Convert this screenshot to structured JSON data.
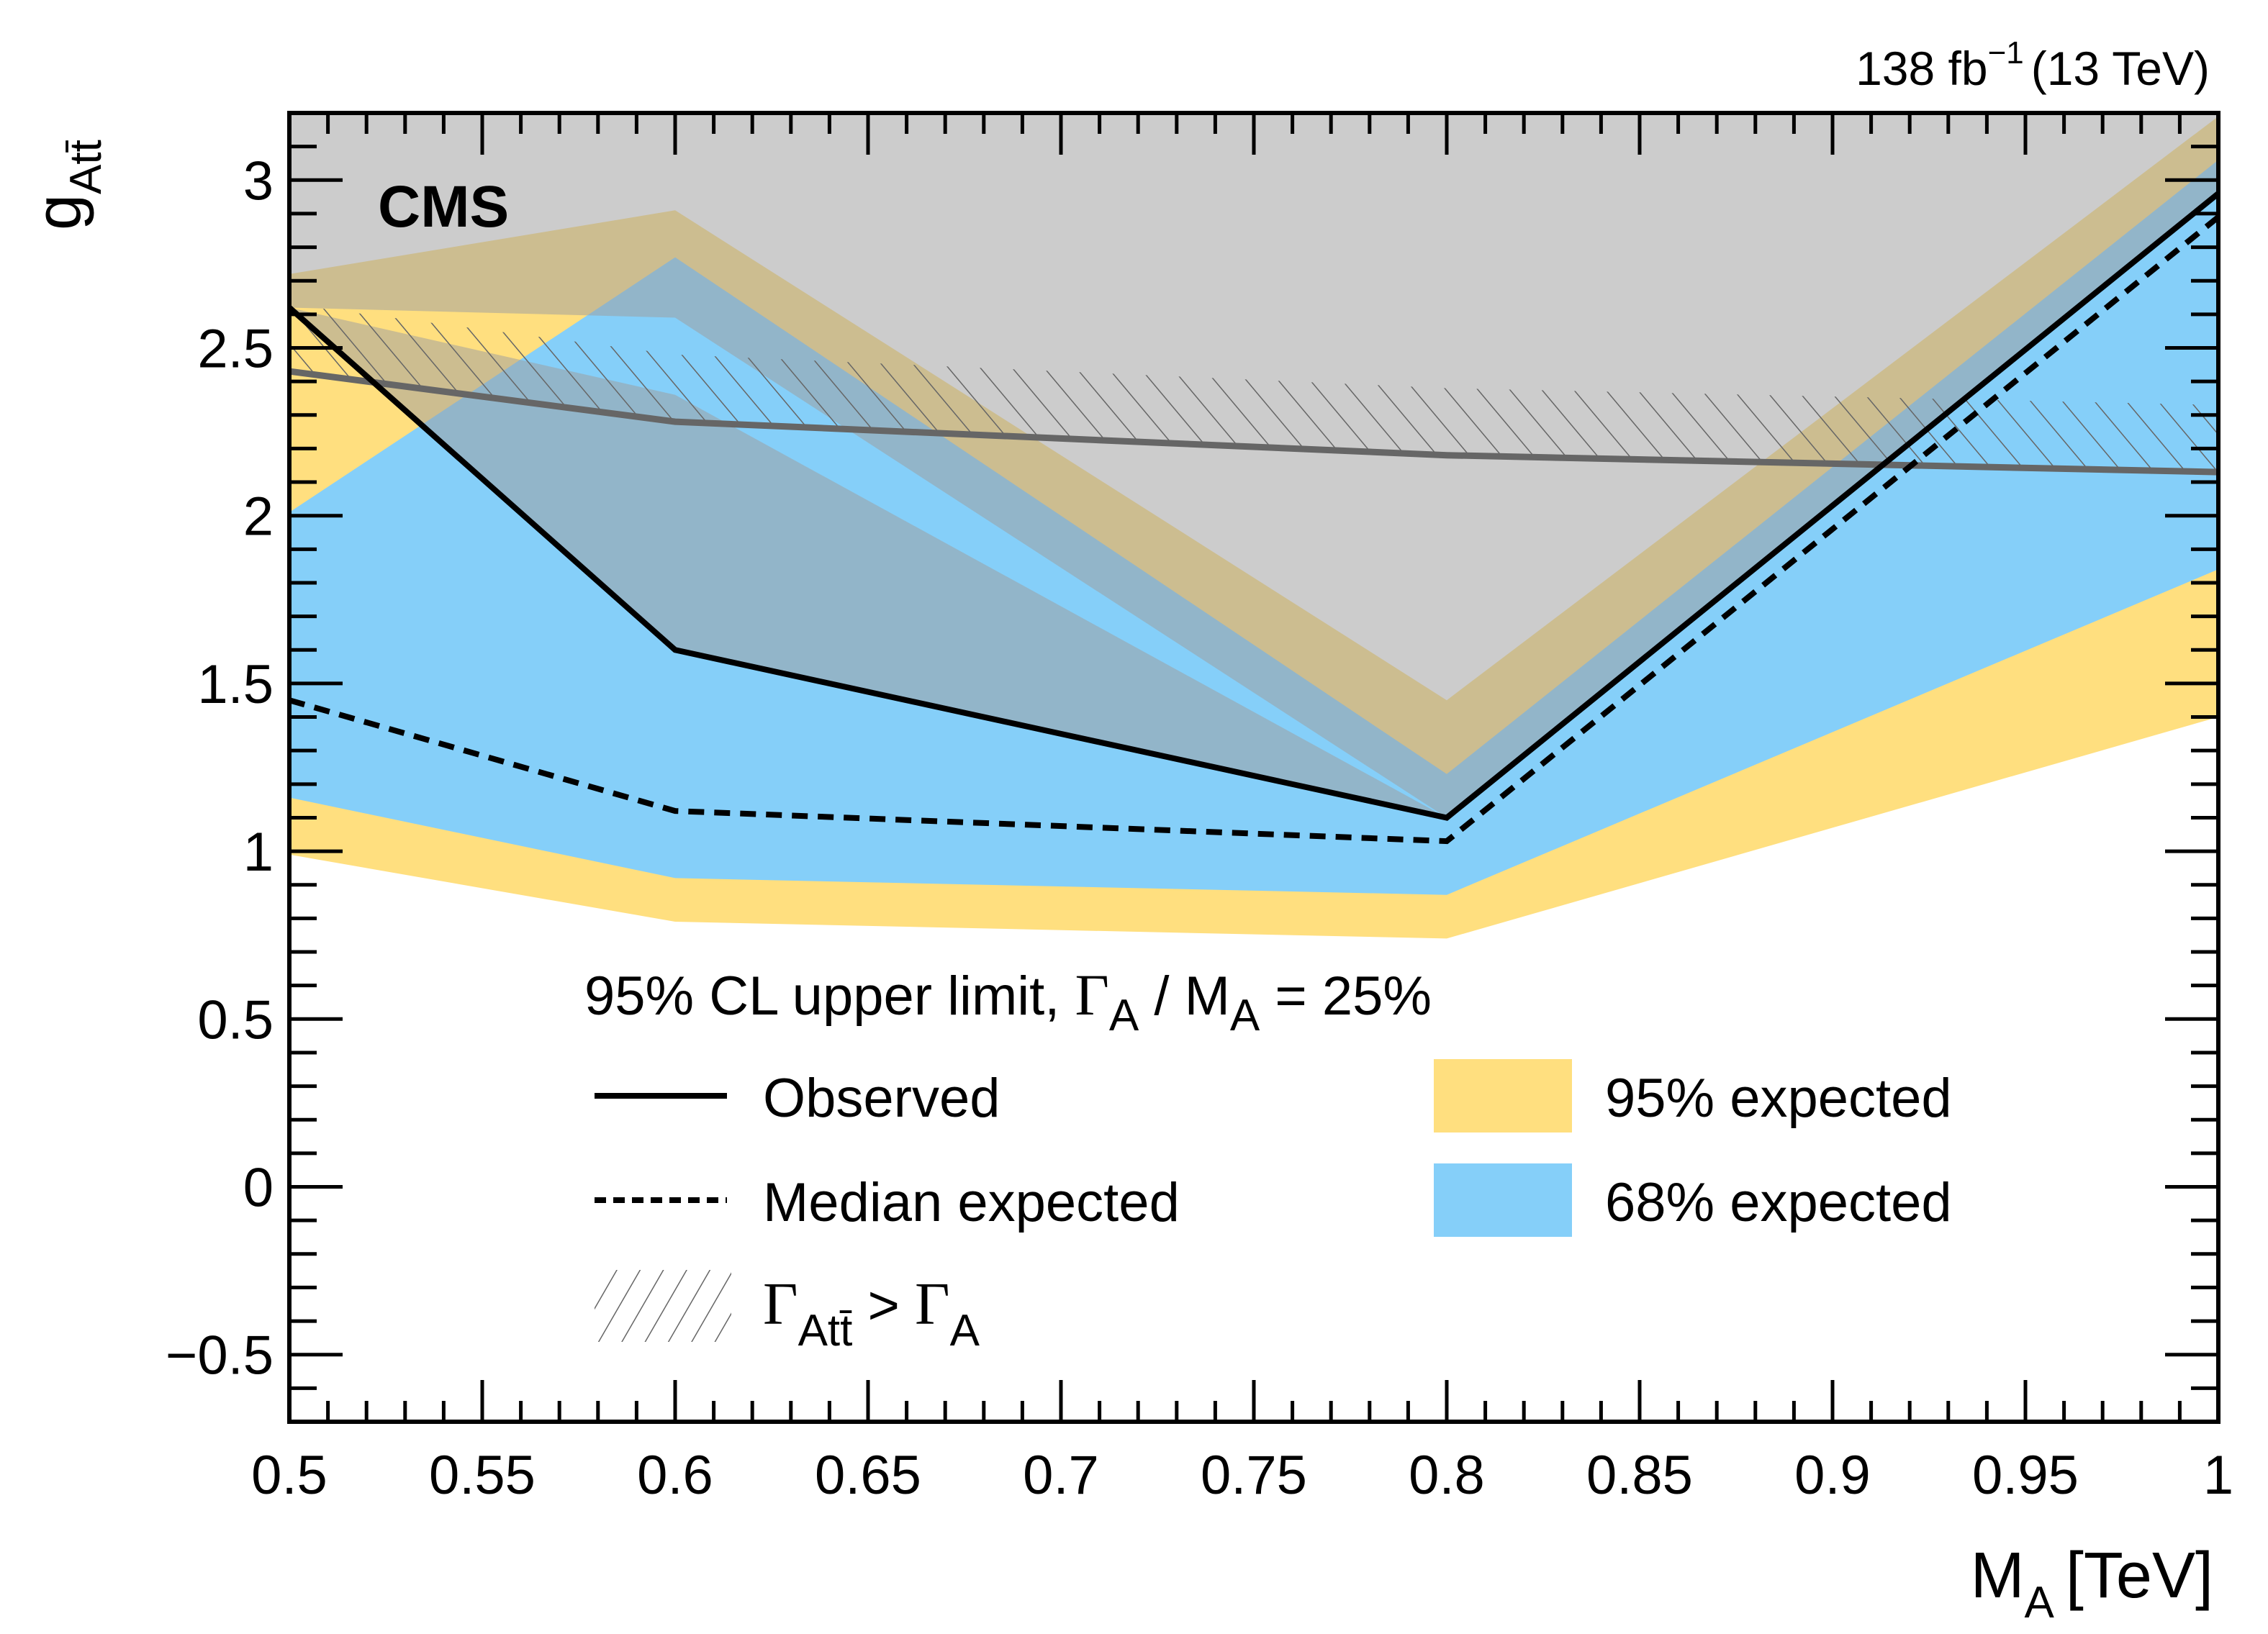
{
  "chart_data": {
    "type": "line",
    "experiment_label": "CMS",
    "lumi_label": {
      "value": "138 fb",
      "superscript": "−1",
      "energy": "(13 TeV)"
    },
    "xlabel": {
      "main": "M",
      "sub": "A",
      "unit": "[TeV]"
    },
    "ylabel": {
      "main": "g",
      "sub": "Att̄"
    },
    "xlim": [
      0.5,
      1.0
    ],
    "ylim": [
      -0.7,
      3.2
    ],
    "x_ticks": [
      0.5,
      0.55,
      0.6,
      0.65,
      0.7,
      0.75,
      0.8,
      0.85,
      0.9,
      0.95,
      1.0
    ],
    "x_tick_labels": [
      "0.5",
      "0.55",
      "0.6",
      "0.65",
      "0.7",
      "0.75",
      "0.8",
      "0.85",
      "0.9",
      "0.95",
      "1"
    ],
    "y_ticks": [
      -0.5,
      0,
      0.5,
      1,
      1.5,
      2,
      2.5,
      3
    ],
    "y_tick_labels": [
      "−0.5",
      "0",
      "0.5",
      "1",
      "1.5",
      "2",
      "2.5",
      "3"
    ],
    "grid": false,
    "x": [
      0.5,
      0.6,
      0.8,
      1.0
    ],
    "series": [
      {
        "name": "Observed",
        "style": "solid",
        "color": "#000000",
        "values": [
          2.62,
          1.6,
          1.1,
          2.96
        ]
      },
      {
        "name": "Median expected",
        "style": "dashed",
        "color": "#000000",
        "values": [
          1.45,
          1.12,
          1.03,
          2.89
        ]
      },
      {
        "name": "Gamma_Att > Gamma_A boundary",
        "style": "solid-hatched",
        "color": "#666666",
        "values": [
          2.43,
          2.28,
          2.18,
          2.13
        ]
      }
    ],
    "bands": [
      {
        "name": "95% expected",
        "color": "#FFDF7F",
        "lower": [
          0.99,
          0.79,
          0.74,
          1.4
        ],
        "upper": [
          2.72,
          2.91,
          1.45,
          3.19
        ]
      },
      {
        "name": "68% expected",
        "color": "#85CFF9",
        "lower": [
          1.16,
          0.92,
          0.87,
          1.84
        ],
        "upper": [
          2.01,
          2.77,
          1.23,
          3.06
        ]
      }
    ],
    "excluded_region": {
      "color": "#9E9E9E",
      "upper_part_lower_edge": [
        2.62,
        2.59,
        1.1,
        2.96
      ],
      "lower_part": {
        "x": [
          0.5,
          0.6,
          0.8
        ],
        "upper": [
          2.62,
          2.36,
          1.1
        ],
        "lower": [
          2.62,
          1.6,
          1.1
        ]
      }
    },
    "legend": {
      "header": {
        "prefix": "95% CL upper limit, ",
        "gamma": "Γ",
        "gamma_sub": "A",
        "mid": " / M",
        "m_sub": "A",
        "suffix": " = 25%"
      },
      "placement": "bottom-center",
      "entries": [
        {
          "label": "Observed",
          "symbol": "solid-line"
        },
        {
          "label": "Median expected",
          "symbol": "dashed-line"
        },
        {
          "label_gamma": "Γ",
          "label_sub": "Att̄",
          "label_mid": " > ",
          "label_gamma2": "Γ",
          "label_sub2": "A",
          "symbol": "hatched-box"
        },
        {
          "label": "95% expected",
          "symbol": "yellow-box"
        },
        {
          "label": "68% expected",
          "symbol": "blue-box"
        }
      ]
    }
  }
}
